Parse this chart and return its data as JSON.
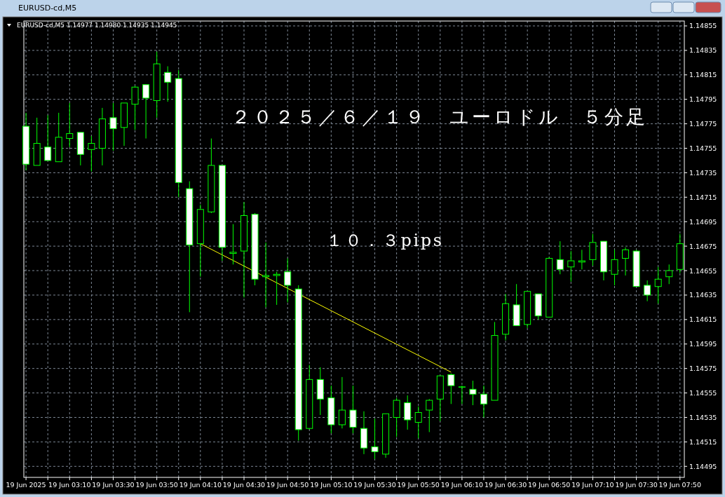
{
  "chart_data": {
    "type": "candlestick",
    "title": "EURUSD-cd,M5",
    "subtitle": "EURUSD-cd,M5  1.14977 1.14980 1.14935 1.14945",
    "annotations": [
      "２０２５／６／１９　ユーロドル　５分足",
      "１０．３pips"
    ],
    "grid": true,
    "ylim": [
      1.14486,
      1.14859
    ],
    "yticks": [
      1.14495,
      1.14515,
      1.14535,
      1.14555,
      1.14575,
      1.14595,
      1.14615,
      1.14635,
      1.14655,
      1.14675,
      1.14695,
      1.14715,
      1.14735,
      1.14755,
      1.14775,
      1.14795,
      1.14815,
      1.14835,
      1.14855
    ],
    "xlim": [
      "2025-06-19T02:49",
      "2025-06-19T07:52"
    ],
    "xticks": [
      {
        "value": "2025-06-19T02:50",
        "label": "19 Jun 2025"
      },
      {
        "value": "2025-06-19T03:00",
        "label": null
      },
      {
        "value": "2025-06-19T03:10",
        "label": "19 Jun 03:10"
      },
      {
        "value": "2025-06-19T03:20",
        "label": null
      },
      {
        "value": "2025-06-19T03:30",
        "label": "19 Jun 03:30"
      },
      {
        "value": "2025-06-19T03:40",
        "label": null
      },
      {
        "value": "2025-06-19T03:50",
        "label": "19 Jun 03:50"
      },
      {
        "value": "2025-06-19T04:00",
        "label": null
      },
      {
        "value": "2025-06-19T04:10",
        "label": "19 Jun 04:10"
      },
      {
        "value": "2025-06-19T04:20",
        "label": null
      },
      {
        "value": "2025-06-19T04:30",
        "label": "19 Jun 04:30"
      },
      {
        "value": "2025-06-19T04:40",
        "label": null
      },
      {
        "value": "2025-06-19T04:50",
        "label": "19 Jun 04:50"
      },
      {
        "value": "2025-06-19T05:00",
        "label": null
      },
      {
        "value": "2025-06-19T05:10",
        "label": "19 Jun 05:10"
      },
      {
        "value": "2025-06-19T05:20",
        "label": null
      },
      {
        "value": "2025-06-19T05:30",
        "label": "19 Jun 05:30"
      },
      {
        "value": "2025-06-19T05:40",
        "label": null
      },
      {
        "value": "2025-06-19T05:50",
        "label": "19 Jun 05:50"
      },
      {
        "value": "2025-06-19T06:00",
        "label": null
      },
      {
        "value": "2025-06-19T06:10",
        "label": "19 Jun 06:10"
      },
      {
        "value": "2025-06-19T06:20",
        "label": null
      },
      {
        "value": "2025-06-19T06:30",
        "label": "19 Jun 06:30"
      },
      {
        "value": "2025-06-19T06:40",
        "label": null
      },
      {
        "value": "2025-06-19T06:50",
        "label": "19 Jun 06:50"
      },
      {
        "value": "2025-06-19T07:00",
        "label": null
      },
      {
        "value": "2025-06-19T07:10",
        "label": "19 Jun 07:10"
      },
      {
        "value": "2025-06-19T07:20",
        "label": null
      },
      {
        "value": "2025-06-19T07:30",
        "label": "19 Jun 07:30"
      },
      {
        "value": "2025-06-19T07:40",
        "label": null
      },
      {
        "value": "2025-06-19T07:50",
        "label": "19 Jun 07:50"
      }
    ],
    "series": [
      {
        "type": "candlestick",
        "color": "#00ff00",
        "x": [
          "2025-06-19T02:50",
          "2025-06-19T02:55",
          "2025-06-19T03:00",
          "2025-06-19T03:05",
          "2025-06-19T03:10",
          "2025-06-19T03:15",
          "2025-06-19T03:20",
          "2025-06-19T03:25",
          "2025-06-19T03:30",
          "2025-06-19T03:35",
          "2025-06-19T03:40",
          "2025-06-19T03:45",
          "2025-06-19T03:50",
          "2025-06-19T03:55",
          "2025-06-19T04:00",
          "2025-06-19T04:05",
          "2025-06-19T04:10",
          "2025-06-19T04:15",
          "2025-06-19T04:20",
          "2025-06-19T04:25",
          "2025-06-19T04:30",
          "2025-06-19T04:35",
          "2025-06-19T04:40",
          "2025-06-19T04:45",
          "2025-06-19T04:50",
          "2025-06-19T04:55",
          "2025-06-19T05:00",
          "2025-06-19T05:05",
          "2025-06-19T05:10",
          "2025-06-19T05:15",
          "2025-06-19T05:20",
          "2025-06-19T05:25",
          "2025-06-19T05:30",
          "2025-06-19T05:35",
          "2025-06-19T05:40",
          "2025-06-19T05:45",
          "2025-06-19T05:50",
          "2025-06-19T05:55",
          "2025-06-19T06:00",
          "2025-06-19T06:05",
          "2025-06-19T06:10",
          "2025-06-19T06:15",
          "2025-06-19T06:20",
          "2025-06-19T06:25",
          "2025-06-19T06:30",
          "2025-06-19T06:35",
          "2025-06-19T06:40",
          "2025-06-19T06:45",
          "2025-06-19T06:50",
          "2025-06-19T06:55",
          "2025-06-19T07:00",
          "2025-06-19T07:05",
          "2025-06-19T07:10",
          "2025-06-19T07:15",
          "2025-06-19T07:20",
          "2025-06-19T07:25",
          "2025-06-19T07:30",
          "2025-06-19T07:35",
          "2025-06-19T07:40",
          "2025-06-19T07:45",
          "2025-06-19T07:50"
        ],
        "ohlc": [
          [
            1.14773,
            1.14784,
            1.14737,
            1.14742
          ],
          [
            1.14741,
            1.1478,
            1.14741,
            1.14759
          ],
          [
            1.14756,
            1.14782,
            1.14745,
            1.14745
          ],
          [
            1.14744,
            1.14784,
            1.14744,
            1.14764
          ],
          [
            1.14763,
            1.14792,
            1.14756,
            1.14767
          ],
          [
            1.14768,
            1.14768,
            1.14741,
            1.1475
          ],
          [
            1.14754,
            1.14765,
            1.14736,
            1.14759
          ],
          [
            1.14755,
            1.14788,
            1.14741,
            1.14779
          ],
          [
            1.1478,
            1.14792,
            1.14753,
            1.14771
          ],
          [
            1.14772,
            1.14792,
            1.14757,
            1.14792
          ],
          [
            1.14791,
            1.14806,
            1.1477,
            1.14805
          ],
          [
            1.14807,
            1.14807,
            1.14763,
            1.14796
          ],
          [
            1.14794,
            1.14834,
            1.1478,
            1.14824
          ],
          [
            1.14817,
            1.14822,
            1.14793,
            1.14809
          ],
          [
            1.14812,
            1.14819,
            1.14715,
            1.14727
          ],
          [
            1.14722,
            1.14728,
            1.14621,
            1.14676
          ],
          [
            1.14677,
            1.14709,
            1.1465,
            1.14705
          ],
          [
            1.14703,
            1.14763,
            1.14702,
            1.14741
          ],
          [
            1.14741,
            1.14741,
            1.14663,
            1.14674
          ],
          [
            1.14669,
            1.14693,
            1.1466,
            1.1467
          ],
          [
            1.14671,
            1.14711,
            1.14633,
            1.147
          ],
          [
            1.14701,
            1.14702,
            1.14643,
            1.14648
          ],
          [
            1.1465,
            1.14678,
            1.14625,
            1.14651
          ],
          [
            1.14651,
            1.14654,
            1.14627,
            1.14652
          ],
          [
            1.14654,
            1.14665,
            1.14629,
            1.14643
          ],
          [
            1.1464,
            1.14643,
            1.14516,
            1.14525
          ],
          [
            1.14526,
            1.14578,
            1.14525,
            1.14566
          ],
          [
            1.14566,
            1.14576,
            1.14537,
            1.1455
          ],
          [
            1.14551,
            1.14561,
            1.14522,
            1.14529
          ],
          [
            1.14529,
            1.14568,
            1.14526,
            1.14541
          ],
          [
            1.14541,
            1.14561,
            1.14522,
            1.14527
          ],
          [
            1.14526,
            1.1454,
            1.14505,
            1.1451
          ],
          [
            1.14511,
            1.14534,
            1.14501,
            1.14507
          ],
          [
            1.14505,
            1.14538,
            1.14502,
            1.14538
          ],
          [
            1.14535,
            1.14551,
            1.14519,
            1.14549
          ],
          [
            1.14547,
            1.14553,
            1.14525,
            1.14533
          ],
          [
            1.14531,
            1.14544,
            1.14518,
            1.14539
          ],
          [
            1.14541,
            1.1455,
            1.14523,
            1.14549
          ],
          [
            1.1455,
            1.14569,
            1.14532,
            1.14569
          ],
          [
            1.1457,
            1.14571,
            1.14546,
            1.14561
          ],
          [
            1.1456,
            1.14561,
            1.14546,
            1.1456
          ],
          [
            1.14558,
            1.14565,
            1.14545,
            1.14554
          ],
          [
            1.14554,
            1.14561,
            1.14535,
            1.14546
          ],
          [
            1.14549,
            1.14613,
            1.14549,
            1.14602
          ],
          [
            1.14603,
            1.14636,
            1.14598,
            1.14628
          ],
          [
            1.14627,
            1.14644,
            1.1461,
            1.1461
          ],
          [
            1.14611,
            1.14638,
            1.14608,
            1.14638
          ],
          [
            1.14636,
            1.14636,
            1.14615,
            1.14618
          ],
          [
            1.14617,
            1.14666,
            1.14617,
            1.14665
          ],
          [
            1.14664,
            1.14679,
            1.14652,
            1.14656
          ],
          [
            1.14658,
            1.14671,
            1.14646,
            1.14663
          ],
          [
            1.14662,
            1.14672,
            1.14656,
            1.14663
          ],
          [
            1.14664,
            1.14685,
            1.14659,
            1.14678
          ],
          [
            1.14679,
            1.14679,
            1.14647,
            1.14654
          ],
          [
            1.14652,
            1.14672,
            1.14643,
            1.14664
          ],
          [
            1.14665,
            1.14674,
            1.14651,
            1.14672
          ],
          [
            1.14671,
            1.14672,
            1.14642,
            1.14642
          ],
          [
            1.14643,
            1.14647,
            1.1463,
            1.14635
          ],
          [
            1.14642,
            1.14658,
            1.14628,
            1.14648
          ],
          [
            1.1465,
            1.1466,
            1.14644,
            1.14655
          ],
          [
            1.14656,
            1.14685,
            1.14653,
            1.14677
          ]
        ]
      },
      {
        "type": "line",
        "color": "#ffff00",
        "x": [
          "2025-06-19T04:10",
          "2025-06-19T06:05"
        ],
        "values": [
          1.14677,
          1.14572
        ]
      }
    ]
  }
}
